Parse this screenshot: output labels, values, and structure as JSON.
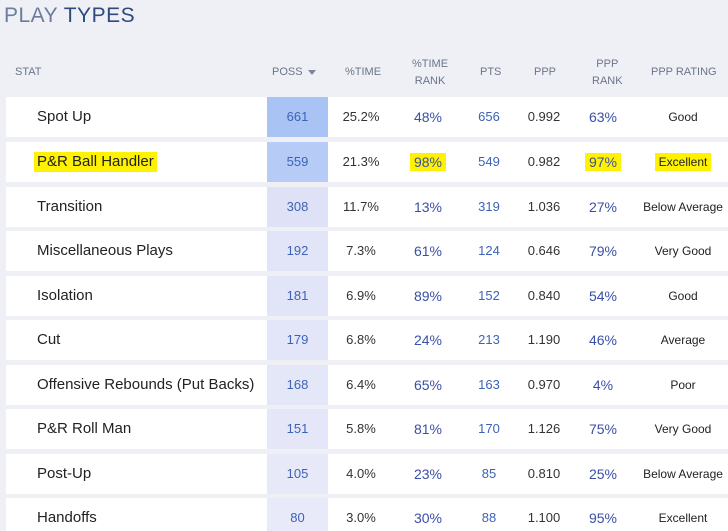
{
  "title": {
    "word1": "PLAY",
    "word2": "TYPES"
  },
  "columns": {
    "stat": "STAT",
    "poss": "POSS",
    "pct_time": "%TIME",
    "pct_time_rank_1": "%TIME",
    "pct_time_rank_2": "RANK",
    "pts": "PTS",
    "ppp": "PPP",
    "ppp_rank_1": "PPP",
    "ppp_rank_2": "RANK",
    "ppp_rating": "PPP RATING"
  },
  "colors": {
    "poss_shade_strong": "#a9c3f4",
    "poss_shade_light": "#dfe2f7",
    "highlight": "#fff200",
    "rank_blue": "#3a4fa6"
  },
  "rows": [
    {
      "label": "Spot Up",
      "poss": "661",
      "time": "25.2%",
      "time_rank": "48%",
      "pts": "656",
      "ppp": "0.992",
      "ppp_rank": "63%",
      "rating": "Good"
    },
    {
      "label": "P&R Ball Handler",
      "poss": "559",
      "time": "21.3%",
      "time_rank": "98%",
      "pts": "549",
      "ppp": "0.982",
      "ppp_rank": "97%",
      "rating": "Excellent"
    },
    {
      "label": "Transition",
      "poss": "308",
      "time": "11.7%",
      "time_rank": "13%",
      "pts": "319",
      "ppp": "1.036",
      "ppp_rank": "27%",
      "rating": "Below Average"
    },
    {
      "label": "Miscellaneous Plays",
      "poss": "192",
      "time": "7.3%",
      "time_rank": "61%",
      "pts": "124",
      "ppp": "0.646",
      "ppp_rank": "79%",
      "rating": "Very Good"
    },
    {
      "label": "Isolation",
      "poss": "181",
      "time": "6.9%",
      "time_rank": "89%",
      "pts": "152",
      "ppp": "0.840",
      "ppp_rank": "54%",
      "rating": "Good"
    },
    {
      "label": "Cut",
      "poss": "179",
      "time": "6.8%",
      "time_rank": "24%",
      "pts": "213",
      "ppp": "1.190",
      "ppp_rank": "46%",
      "rating": "Average"
    },
    {
      "label": "Offensive Rebounds (Put Backs)",
      "poss": "168",
      "time": "6.4%",
      "time_rank": "65%",
      "pts": "163",
      "ppp": "0.970",
      "ppp_rank": "4%",
      "rating": "Poor"
    },
    {
      "label": "P&R Roll Man",
      "poss": "151",
      "time": "5.8%",
      "time_rank": "81%",
      "pts": "170",
      "ppp": "1.126",
      "ppp_rank": "75%",
      "rating": "Very Good"
    },
    {
      "label": "Post-Up",
      "poss": "105",
      "time": "4.0%",
      "time_rank": "23%",
      "pts": "85",
      "ppp": "0.810",
      "ppp_rank": "25%",
      "rating": "Below Average"
    },
    {
      "label": "Handoffs",
      "poss": "80",
      "time": "3.0%",
      "time_rank": "30%",
      "pts": "88",
      "ppp": "1.100",
      "ppp_rank": "95%",
      "rating": "Excellent"
    }
  ]
}
